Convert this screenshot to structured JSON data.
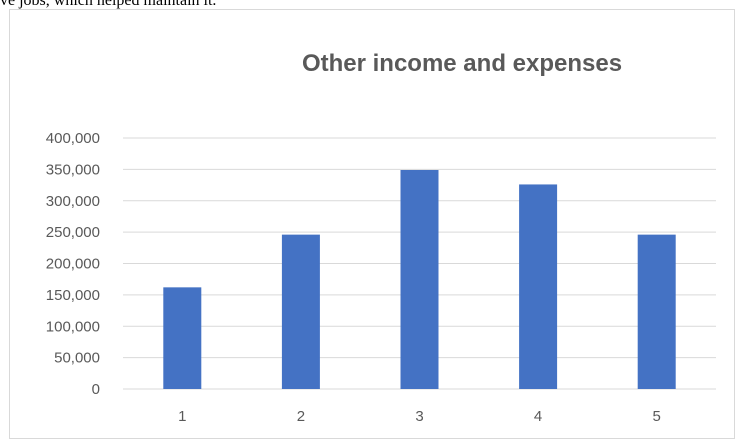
{
  "page": {
    "header_snippet": "ve jobs, which helped maintain it."
  },
  "colors": {
    "bar": "#4472c4",
    "gridline": "#d9d9d9",
    "axis_text": "#595959",
    "frame": "#d9d9d9"
  },
  "chart_data": {
    "type": "bar",
    "title": "Other income and expenses",
    "xlabel": "",
    "ylabel": "",
    "categories": [
      "1",
      "2",
      "3",
      "4",
      "5"
    ],
    "values": [
      162000,
      246000,
      349000,
      326000,
      246000
    ],
    "ylim": [
      0,
      400000
    ],
    "yticks": [
      "0",
      "50,000",
      "100,000",
      "150,000",
      "200,000",
      "250,000",
      "300,000",
      "350,000",
      "400,000"
    ],
    "grid": true,
    "legend": "none"
  }
}
